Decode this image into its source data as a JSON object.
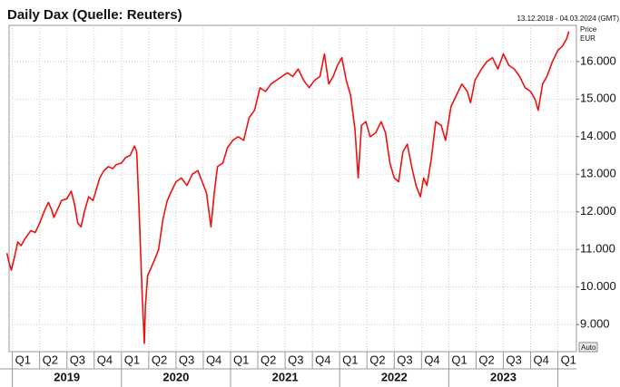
{
  "chart_data": {
    "type": "line",
    "title": "Daily Dax (Quelle: Reuters)",
    "subtitle": "13.12.2018 - 04.03.2024 (GMT)",
    "y_axis_label": "Price",
    "y_axis_unit": "EUR",
    "scale_button": "Auto",
    "grid": true,
    "series": [
      {
        "name": "Dax",
        "color": "#ee1111",
        "x": [
          2018.95,
          2018.97,
          2018.99,
          2019.02,
          2019.05,
          2019.08,
          2019.12,
          2019.17,
          2019.21,
          2019.25,
          2019.29,
          2019.33,
          2019.36,
          2019.38,
          2019.42,
          2019.45,
          2019.5,
          2019.54,
          2019.57,
          2019.6,
          2019.63,
          2019.66,
          2019.7,
          2019.74,
          2019.8,
          2019.84,
          2019.88,
          2019.92,
          2019.95,
          2020.0,
          2020.04,
          2020.08,
          2020.12,
          2020.14,
          2020.16,
          2020.19,
          2020.21,
          2020.22,
          2020.24,
          2020.27,
          2020.3,
          2020.34,
          2020.38,
          2020.42,
          2020.45,
          2020.5,
          2020.55,
          2020.6,
          2020.65,
          2020.7,
          2020.74,
          2020.78,
          2020.82,
          2020.85,
          2020.88,
          2020.93,
          2020.97,
          2021.02,
          2021.07,
          2021.12,
          2021.17,
          2021.22,
          2021.27,
          2021.32,
          2021.37,
          2021.42,
          2021.47,
          2021.52,
          2021.57,
          2021.62,
          2021.67,
          2021.72,
          2021.77,
          2021.82,
          2021.86,
          2021.9,
          2021.94,
          2021.98,
          2022.02,
          2022.06,
          2022.1,
          2022.14,
          2022.17,
          2022.2,
          2022.24,
          2022.28,
          2022.33,
          2022.38,
          2022.42,
          2022.46,
          2022.5,
          2022.54,
          2022.58,
          2022.62,
          2022.66,
          2022.7,
          2022.74,
          2022.77,
          2022.8,
          2022.84,
          2022.88,
          2022.93,
          2022.97,
          2023.02,
          2023.07,
          2023.12,
          2023.17,
          2023.2,
          2023.24,
          2023.3,
          2023.35,
          2023.4,
          2023.45,
          2023.5,
          2023.55,
          2023.6,
          2023.65,
          2023.7,
          2023.75,
          2023.79,
          2023.82,
          2023.86,
          2023.9,
          2023.95,
          2024.0,
          2024.04,
          2024.08,
          2024.1
        ],
        "values": [
          10900,
          10650,
          10450,
          10800,
          11200,
          11100,
          11300,
          11500,
          11450,
          11700,
          12000,
          12250,
          12050,
          11850,
          12100,
          12300,
          12350,
          12550,
          12200,
          11700,
          11600,
          12000,
          12400,
          12300,
          12900,
          13100,
          13200,
          13150,
          13250,
          13300,
          13450,
          13500,
          13750,
          13600,
          12200,
          9800,
          8500,
          9500,
          10300,
          10500,
          10700,
          11000,
          11800,
          12300,
          12500,
          12800,
          12900,
          12700,
          13000,
          13100,
          12800,
          12500,
          11600,
          12500,
          13200,
          13300,
          13700,
          13900,
          14000,
          13900,
          14500,
          14700,
          15300,
          15200,
          15400,
          15500,
          15600,
          15700,
          15600,
          15800,
          15500,
          15300,
          15500,
          15600,
          16200,
          15400,
          15600,
          15900,
          16100,
          15500,
          15100,
          14200,
          12900,
          14300,
          14400,
          14000,
          14100,
          14400,
          14100,
          13300,
          12900,
          12800,
          13600,
          13800,
          13200,
          12700,
          12400,
          12900,
          12700,
          13400,
          14400,
          14300,
          13900,
          14800,
          15100,
          15400,
          15200,
          14900,
          15500,
          15800,
          16000,
          16100,
          15800,
          16200,
          15900,
          15800,
          15600,
          15300,
          15200,
          15000,
          14700,
          15400,
          15600,
          16000,
          16300,
          16400,
          16600,
          16800
        ]
      }
    ],
    "xlim": [
      2018.97,
      2024.17
    ],
    "xticks": [
      {
        "value": 2019.0,
        "label": "Q1"
      },
      {
        "value": 2019.25,
        "label": "Q2"
      },
      {
        "value": 2019.5,
        "label": "Q3"
      },
      {
        "value": 2019.75,
        "label": "Q4"
      },
      {
        "value": 2020.0,
        "label": "Q1"
      },
      {
        "value": 2020.25,
        "label": "Q2"
      },
      {
        "value": 2020.5,
        "label": "Q3"
      },
      {
        "value": 2020.75,
        "label": "Q4"
      },
      {
        "value": 2021.0,
        "label": "Q1"
      },
      {
        "value": 2021.25,
        "label": "Q2"
      },
      {
        "value": 2021.5,
        "label": "Q3"
      },
      {
        "value": 2021.75,
        "label": "Q4"
      },
      {
        "value": 2022.0,
        "label": "Q1"
      },
      {
        "value": 2022.25,
        "label": "Q2"
      },
      {
        "value": 2022.5,
        "label": "Q3"
      },
      {
        "value": 2022.75,
        "label": "Q4"
      },
      {
        "value": 2023.0,
        "label": "Q1"
      },
      {
        "value": 2023.25,
        "label": "Q2"
      },
      {
        "value": 2023.5,
        "label": "Q3"
      },
      {
        "value": 2023.75,
        "label": "Q4"
      },
      {
        "value": 2024.0,
        "label": "Q1"
      }
    ],
    "year_ticks": [
      {
        "value": 2019.5,
        "label": "2019"
      },
      {
        "value": 2020.5,
        "label": "2020"
      },
      {
        "value": 2021.5,
        "label": "2021"
      },
      {
        "value": 2022.5,
        "label": "2022"
      },
      {
        "value": 2023.5,
        "label": "2023"
      }
    ],
    "ylim": [
      8280,
      16960
    ],
    "yticks": [
      {
        "value": 9000,
        "label": "9.000"
      },
      {
        "value": 10000,
        "label": "10.000"
      },
      {
        "value": 11000,
        "label": "11.000"
      },
      {
        "value": 12000,
        "label": "12.000"
      },
      {
        "value": 13000,
        "label": "13.000"
      },
      {
        "value": 14000,
        "label": "14.000"
      },
      {
        "value": 15000,
        "label": "15.000"
      },
      {
        "value": 16000,
        "label": "16.000"
      }
    ]
  }
}
